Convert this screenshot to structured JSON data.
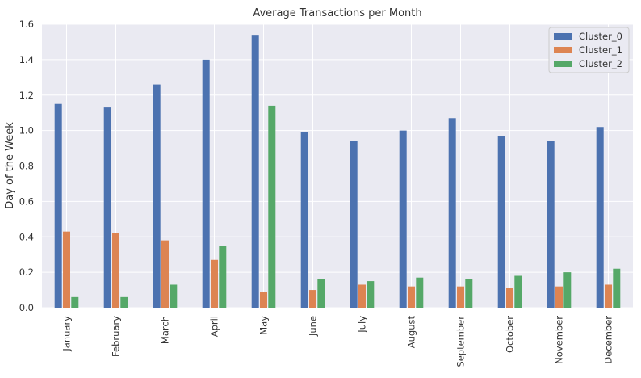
{
  "chart_data": {
    "type": "bar",
    "title": "Average Transactions per Month",
    "xlabel": "",
    "ylabel": "Day of the Week",
    "ylim": [
      0,
      1.6
    ],
    "yticks": [
      0.0,
      0.2,
      0.4,
      0.6,
      0.8,
      1.0,
      1.2,
      1.4,
      1.6
    ],
    "ytick_labels": [
      "0.0",
      "0.2",
      "0.4",
      "0.6",
      "0.8",
      "1.0",
      "1.2",
      "1.4",
      "1.6"
    ],
    "grid": true,
    "legend_position": "top-right",
    "categories": [
      "January",
      "February",
      "March",
      "April",
      "May",
      "June",
      "July",
      "August",
      "September",
      "October",
      "November",
      "December"
    ],
    "series": [
      {
        "name": "Cluster_0",
        "color": "#4c72b0",
        "values": [
          1.15,
          1.13,
          1.26,
          1.4,
          1.54,
          0.99,
          0.94,
          1.0,
          1.07,
          0.97,
          0.94,
          1.02
        ]
      },
      {
        "name": "Cluster_1",
        "color": "#dd8452",
        "values": [
          0.43,
          0.42,
          0.38,
          0.27,
          0.09,
          0.1,
          0.13,
          0.12,
          0.12,
          0.11,
          0.12,
          0.13
        ]
      },
      {
        "name": "Cluster_2",
        "color": "#55a868",
        "values": [
          0.06,
          0.06,
          0.13,
          0.35,
          1.14,
          0.16,
          0.15,
          0.17,
          0.16,
          0.18,
          0.2,
          0.22
        ]
      }
    ]
  }
}
